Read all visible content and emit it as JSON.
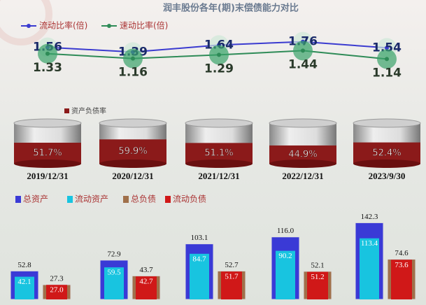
{
  "chart_data": [
    {
      "type": "line",
      "title": "润丰股份各年(期)末偿债能力对比",
      "series": [
        {
          "name": "流动比率(倍)",
          "color": "#3b3bd0",
          "values": [
            1.56,
            1.39,
            1.64,
            1.76,
            1.54
          ]
        },
        {
          "name": "速动比率(倍)",
          "color": "#2e8b57",
          "values": [
            1.33,
            1.16,
            1.29,
            1.44,
            1.14
          ]
        }
      ]
    },
    {
      "type": "cylinder",
      "categories": [
        "2019/12/31",
        "2020/12/31",
        "2021/12/31",
        "2022/12/31",
        "2023/9/30"
      ],
      "series": [
        {
          "name": "资产负债率",
          "color": "#8b1a1a",
          "values": [
            51.7,
            59.9,
            51.1,
            44.9,
            52.4
          ],
          "value_labels": [
            "51.7%",
            "59.9%",
            "51.1%",
            "44.9%",
            "52.4%"
          ]
        }
      ]
    },
    {
      "type": "grouped-bar",
      "series": [
        {
          "name": "总资产",
          "color": "#3a3ad6",
          "values": [
            52.8,
            72.9,
            103.1,
            116.0,
            142.3
          ],
          "value_labels": [
            "52.8",
            "72.9",
            "103.1",
            "116.0",
            "142.3"
          ]
        },
        {
          "name": "流动资产",
          "color": "#18c4e0",
          "values": [
            42.1,
            59.5,
            84.7,
            90.2,
            113.4
          ]
        },
        {
          "name": "总负债",
          "color": "#a0704a",
          "values": [
            27.3,
            43.7,
            52.7,
            52.1,
            74.6
          ]
        },
        {
          "name": "流动负债",
          "color": "#d01818",
          "values": [
            27.0,
            42.7,
            51.7,
            51.2,
            73.6
          ],
          "value_labels": [
            "27.0",
            "42.7",
            "51.7",
            "51.2",
            "73.6"
          ]
        }
      ]
    }
  ]
}
